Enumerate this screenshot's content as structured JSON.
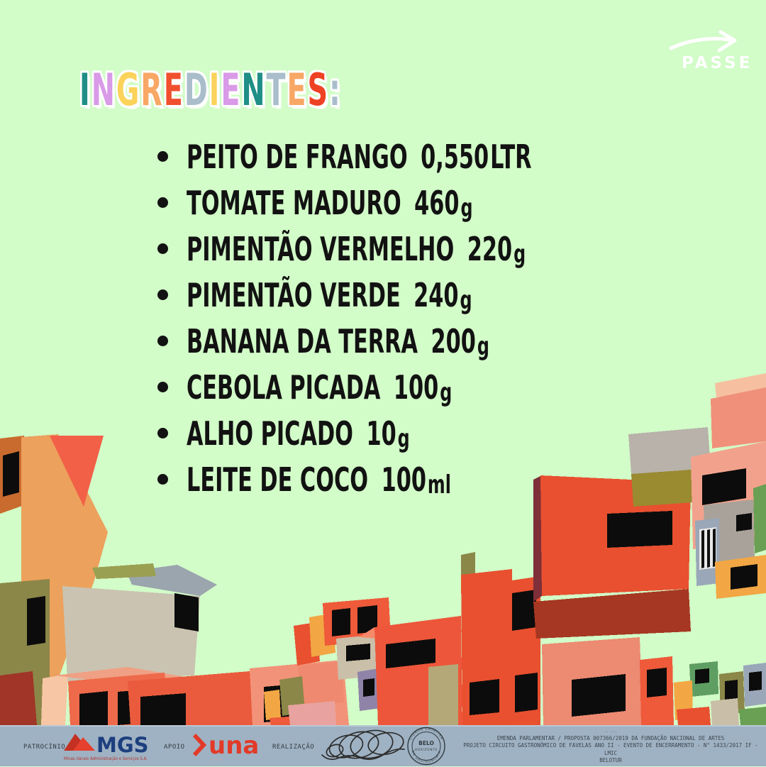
{
  "page": {
    "background_color": "#d2fcc8",
    "footer_background_color": "#9fb2c3",
    "text_color": "#121212"
  },
  "passe": {
    "label": "PASSE"
  },
  "title": {
    "text": "INGREDIENTES:",
    "letters": [
      {
        "ch": "I",
        "color": "#1f8e86"
      },
      {
        "ch": "N",
        "color": "#d99ae7"
      },
      {
        "ch": "G",
        "color": "#fbd35b"
      },
      {
        "ch": "R",
        "color": "#f8a765"
      },
      {
        "ch": "E",
        "color": "#f0502e"
      },
      {
        "ch": "D",
        "color": "#a9bdcb"
      },
      {
        "ch": "I",
        "color": "#fbd35b"
      },
      {
        "ch": "E",
        "color": "#d99ae7"
      },
      {
        "ch": "N",
        "color": "#1f8e86"
      },
      {
        "ch": "T",
        "color": "#a9bdcb"
      },
      {
        "ch": "E",
        "color": "#f8a765"
      },
      {
        "ch": "S",
        "color": "#ef4123"
      },
      {
        "ch": ":",
        "color": "#a9bdcb"
      }
    ]
  },
  "ingredients": [
    {
      "name": "PEITO DE FRANGO",
      "amount": "0,550",
      "unit": "LTR",
      "unit_small": false
    },
    {
      "name": "TOMATE MADURO",
      "amount": "460",
      "unit": "g",
      "unit_small": true
    },
    {
      "name": "PIMENTÃO VERMELHO",
      "amount": "220",
      "unit": "g",
      "unit_small": true
    },
    {
      "name": "PIMENTÃO VERDE",
      "amount": "240",
      "unit": "g",
      "unit_small": true
    },
    {
      "name": "BANANA DA TERRA",
      "amount": "200",
      "unit": "g",
      "unit_small": true
    },
    {
      "name": "CEBOLA PICADA",
      "amount": "100",
      "unit": "g",
      "unit_small": true
    },
    {
      "name": "ALHO PICADO",
      "amount": "10",
      "unit": "g",
      "unit_small": true
    },
    {
      "name": "LEITE DE COCO",
      "amount": "100",
      "unit": "ml",
      "unit_small": true
    }
  ],
  "illustration": {
    "alt": "Colorful 3D favela houses seen from below, converging toward the horizon",
    "palette": [
      "#eca15c",
      "#f26048",
      "#e8502f",
      "#ec8a72",
      "#cac3b1",
      "#8b8748",
      "#f2a744",
      "#6aa054",
      "#9aa7b8",
      "#a63722"
    ]
  },
  "footer": {
    "patrocinio_label": "PATROCÍNIO",
    "apoio_label": "APOIO",
    "realizacao_label": "REALIZAÇÃO",
    "mgs_name": "MGS",
    "mgs_subtext": "Minas Gerais Administração e Serviços S.A.",
    "una_name": "una",
    "una_marks": "- - -",
    "casulo_name": "Casulo",
    "seal": {
      "arc_top": "CIDADE CRIATIVA",
      "center_top": "BELO",
      "center_bottom": "HORIZONTE",
      "arc_bottom": "DA GASTRONOMIA"
    },
    "fine_print_top": "-- ---",
    "fine_print": [
      "EMENDA PARLAMENTAR / PROPOSTA 007366/2019 DA FUNDAÇÃO NACIONAL DE ARTES",
      "PROJETO CIRCUITO GASTRONÔMICO DE FAVELAS ANO II - EVENTO DE ENCERRAMENTO - N° 1433/2017  IF - LMIC",
      "BELOTUR"
    ]
  }
}
